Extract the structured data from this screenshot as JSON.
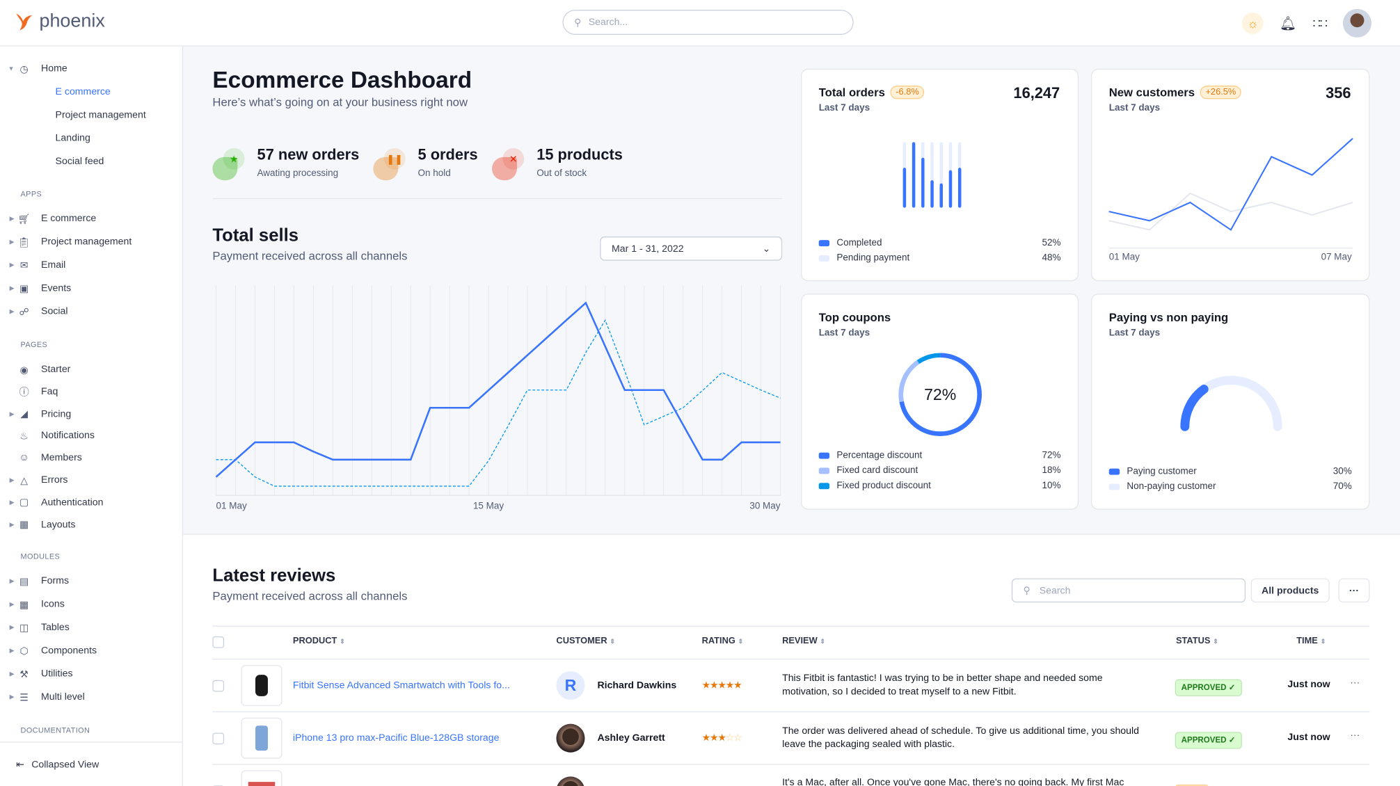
{
  "brand": {
    "name": "phoenix"
  },
  "topbar": {
    "search_placeholder": "Search...",
    "icons": [
      "theme-sun-icon",
      "bell-icon",
      "apps-grid-icon",
      "avatar"
    ]
  },
  "sidebar": {
    "home": {
      "label": "Home",
      "children": [
        "E commerce",
        "Project management",
        "Landing",
        "Social feed"
      ],
      "active": "E commerce"
    },
    "sections": [
      {
        "title": "APPS",
        "items": [
          {
            "label": "E commerce",
            "icon": "cart-icon",
            "caret": true
          },
          {
            "label": "Project management",
            "icon": "clipboard-icon",
            "caret": true
          },
          {
            "label": "Email",
            "icon": "mail-icon",
            "caret": true
          },
          {
            "label": "Events",
            "icon": "bookmark-icon",
            "caret": true
          },
          {
            "label": "Social",
            "icon": "share-icon",
            "caret": true
          }
        ]
      },
      {
        "title": "PAGES",
        "items": [
          {
            "label": "Starter",
            "icon": "compass-icon",
            "caret": false
          },
          {
            "label": "Faq",
            "icon": "help-icon",
            "caret": false
          },
          {
            "label": "Pricing",
            "icon": "tag-icon",
            "caret": true
          },
          {
            "label": "Notifications",
            "icon": "bell-icon",
            "caret": false
          },
          {
            "label": "Members",
            "icon": "users-icon",
            "caret": false
          },
          {
            "label": "Errors",
            "icon": "alert-icon",
            "caret": true
          },
          {
            "label": "Authentication",
            "icon": "lock-icon",
            "caret": true
          },
          {
            "label": "Layouts",
            "icon": "layout-icon",
            "caret": true
          }
        ]
      },
      {
        "title": "MODULES",
        "items": [
          {
            "label": "Forms",
            "icon": "file-icon",
            "caret": true
          },
          {
            "label": "Icons",
            "icon": "grid-icon",
            "caret": true
          },
          {
            "label": "Tables",
            "icon": "columns-icon",
            "caret": true
          },
          {
            "label": "Components",
            "icon": "package-icon",
            "caret": true
          },
          {
            "label": "Utilities",
            "icon": "tool-icon",
            "caret": true
          },
          {
            "label": "Multi level",
            "icon": "layers-icon",
            "caret": true
          }
        ]
      },
      {
        "title": "DOCUMENTATION",
        "items": []
      }
    ],
    "collapse_label": "Collapsed View"
  },
  "header": {
    "title": "Ecommerce Dashboard",
    "subtitle": "Here’s what’s going on at your business right now"
  },
  "stats": [
    {
      "value": "57 new orders",
      "label": "Awating processing",
      "color": "#25b003",
      "icon": "star-icon"
    },
    {
      "value": "5 orders",
      "label": "On hold",
      "color": "#e5780b",
      "icon": "pause-icon"
    },
    {
      "value": "15 products",
      "label": "Out of stock",
      "color": "#ec1f00",
      "icon": "x-icon"
    }
  ],
  "total_sells": {
    "title": "Total sells",
    "subtitle": "Payment received across all channels",
    "date_range": "Mar 1 - 31, 2022"
  },
  "cards": {
    "total_orders": {
      "title": "Total orders",
      "badge": "-6.8%",
      "value": "16,247",
      "period": "Last 7 days",
      "legend": [
        {
          "label": "Completed",
          "value": "52%",
          "color": "#3874ff"
        },
        {
          "label": "Pending payment",
          "value": "48%",
          "color": "#e5edff"
        }
      ]
    },
    "new_customers": {
      "title": "New customers",
      "badge": "+26.5%",
      "value": "356",
      "period": "Last 7 days",
      "x_start": "01 May",
      "x_end": "07 May"
    },
    "top_coupons": {
      "title": "Top coupons",
      "period": "Last 7 days",
      "center": "72%",
      "legend": [
        {
          "label": "Percentage discount",
          "value": "72%",
          "color": "#3874ff"
        },
        {
          "label": "Fixed card discount",
          "value": "18%",
          "color": "#a6c0ff"
        },
        {
          "label": "Fixed product discount",
          "value": "10%",
          "color": "#0097eb"
        }
      ]
    },
    "paying": {
      "title": "Paying vs non paying",
      "period": "Last 7 days",
      "legend": [
        {
          "label": "Paying customer",
          "value": "30%",
          "color": "#3874ff"
        },
        {
          "label": "Non-paying customer",
          "value": "70%",
          "color": "#e5edff"
        }
      ]
    }
  },
  "chart_data": [
    {
      "type": "line",
      "x": [
        "01 May",
        "02 May",
        "03 May",
        "04 May",
        "05 May",
        "06 May",
        "07 May",
        "08 May",
        "09 May",
        "10 May",
        "11 May",
        "12 May",
        "13 May",
        "14 May",
        "15 May",
        "16 May",
        "17 May",
        "18 May",
        "19 May",
        "20 May",
        "21 May",
        "22 May",
        "23 May",
        "24 May",
        "25 May",
        "26 May",
        "27 May",
        "28 May",
        "29 May",
        "30 May"
      ],
      "tick_labels": [
        "01 May",
        "15 May",
        "30 May"
      ],
      "ylim": [
        0,
        91
      ],
      "grid": "vertical",
      "series": [
        {
          "style": "solid",
          "color": "#3874ff",
          "values": [
            8,
            15.5,
            23,
            23,
            23,
            19,
            15.5,
            15.5,
            15.5,
            15.5,
            15.5,
            38,
            38,
            38,
            45.6,
            53.2,
            60.8,
            68.4,
            76,
            83.5,
            64.6,
            45.7,
            45.7,
            45.7,
            30.6,
            15.5,
            15.5,
            23,
            23,
            23
          ]
        },
        {
          "style": "dashed",
          "color": "#0097eb",
          "values": [
            15.5,
            15.5,
            8,
            4,
            4,
            4,
            4,
            4,
            4,
            4,
            4,
            4,
            4,
            4,
            15,
            30,
            45.7,
            45.7,
            45.7,
            62,
            76,
            54,
            30.6,
            34.3,
            38,
            45.5,
            53.3,
            49.5,
            45.7,
            42.2
          ]
        }
      ]
    },
    {
      "type": "bar",
      "title": "Total orders",
      "categories": [
        "1",
        "2",
        "3",
        "4",
        "5",
        "6",
        "7"
      ],
      "series": [
        {
          "name": "Completed",
          "values": [
            0.59,
            1,
            0.75,
            0.39,
            0.34,
            0.55,
            0.59
          ]
        },
        {
          "name": "Pending payment",
          "values": [
            0.41,
            0,
            0.25,
            0.61,
            0.66,
            0.45,
            0.41
          ]
        }
      ]
    },
    {
      "type": "line",
      "title": "New customers",
      "x": [
        "01 May",
        "02 May",
        "03 May",
        "04 May",
        "05 May",
        "06 May",
        "07 May"
      ],
      "tick_labels": [
        "01 May",
        "07 May"
      ],
      "ylim": [
        0,
        50
      ],
      "series": [
        {
          "color": "#3874ff",
          "values": [
            16,
            12,
            20,
            8,
            40,
            32,
            48
          ]
        },
        {
          "color": "#e3e6ed",
          "values": [
            12,
            8,
            24,
            16,
            20,
            14.5,
            20
          ]
        }
      ]
    },
    {
      "type": "pie",
      "title": "Top coupons",
      "categories": [
        "Percentage discount",
        "Fixed card discount",
        "Fixed product discount"
      ],
      "values": [
        72,
        18,
        10
      ]
    },
    {
      "type": "pie",
      "title": "Paying vs non paying",
      "categories": [
        "Paying customer",
        "Non-paying customer"
      ],
      "values": [
        30,
        70
      ]
    }
  ],
  "reviews": {
    "title": "Latest reviews",
    "subtitle": "Payment received across all channels",
    "search_placeholder": "Search",
    "filter_label": "All products",
    "more_label": "···",
    "columns": [
      "PRODUCT",
      "CUSTOMER",
      "RATING",
      "REVIEW",
      "STATUS",
      "TIME"
    ],
    "rows": [
      {
        "product": "Fitbit Sense Advanced Smartwatch with Tools fo...",
        "customer": "Richard Dawkins",
        "initial": "R",
        "rating": 5,
        "review": "This Fitbit is fantastic! I was trying to be in better shape and needed some motivation, so I decided to treat myself to a new Fitbit.",
        "status": "APPROVED ✓",
        "time": "Just now"
      },
      {
        "product": "iPhone 13 pro max-Pacific Blue-128GB storage",
        "customer": "Ashley Garrett",
        "initial": "",
        "rating": 3,
        "review": "The order was delivered ahead of schedule. To give us additional time, you should leave the packaging sealed with plastic.",
        "status": "APPROVED ✓",
        "time": "Just now"
      },
      {
        "product": "",
        "customer": "",
        "initial": "",
        "rating": 0,
        "review": "It's a Mac, after all. Once you've gone Mac, there's no going back. My first Mac lasted",
        "status": "",
        "time": ""
      }
    ]
  }
}
